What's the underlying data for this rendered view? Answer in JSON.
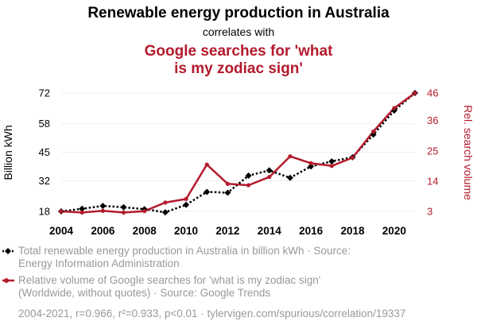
{
  "chart_data": {
    "type": "line",
    "title": "Renewable energy production in Australia",
    "subtitle": "correlates with",
    "title2_lines": [
      "Google searches for 'what",
      "is my zodiac sign'"
    ],
    "x": [
      2004,
      2005,
      2006,
      2007,
      2008,
      2009,
      2010,
      2011,
      2012,
      2013,
      2014,
      2015,
      2016,
      2017,
      2018,
      2019,
      2020,
      2021
    ],
    "xticks": [
      2004,
      2006,
      2008,
      2010,
      2012,
      2014,
      2016,
      2018,
      2020
    ],
    "xlim": [
      2004,
      2021
    ],
    "ylabel_left": "Billion kWh",
    "ylabel_right": "Rel. search volume",
    "yticks_left": [
      18,
      32,
      45,
      58,
      72
    ],
    "yticks_right": [
      3,
      14,
      25,
      36,
      46
    ],
    "ylim_left": [
      18,
      72
    ],
    "ylim_right": [
      3,
      46
    ],
    "series": [
      {
        "axis": "left",
        "color": "#000000",
        "style": "dotted",
        "marker": "diamond",
        "values": [
          18.0,
          19.2,
          20.5,
          19.9,
          19.0,
          17.6,
          21.0,
          26.9,
          26.5,
          34.3,
          36.7,
          33.3,
          38.5,
          40.8,
          42.7,
          53.0,
          64.0,
          72.0
        ],
        "legend_lines": [
          "Total renewable energy production in Australia in billion kWh · Source:",
          "Energy Information Administration"
        ]
      },
      {
        "axis": "right",
        "color": "#b31b2d",
        "style": "solid",
        "marker": "circle",
        "values": [
          3.0,
          2.6,
          3.2,
          2.6,
          3.1,
          6.2,
          7.5,
          20.0,
          13.0,
          12.5,
          15.5,
          23.0,
          20.5,
          19.5,
          22.5,
          32.0,
          40.5,
          46.0
        ],
        "legend_lines": [
          "Relative volume of Google searches for 'what is my zodiac sign'",
          "(Worldwide, without quotes) · Source: Google Trends"
        ]
      }
    ],
    "footer": "2004-2021, r=0.966, r²=0.933, p<0.01 · tylervigen.com/spurious/correlation/19337",
    "grid": true
  }
}
